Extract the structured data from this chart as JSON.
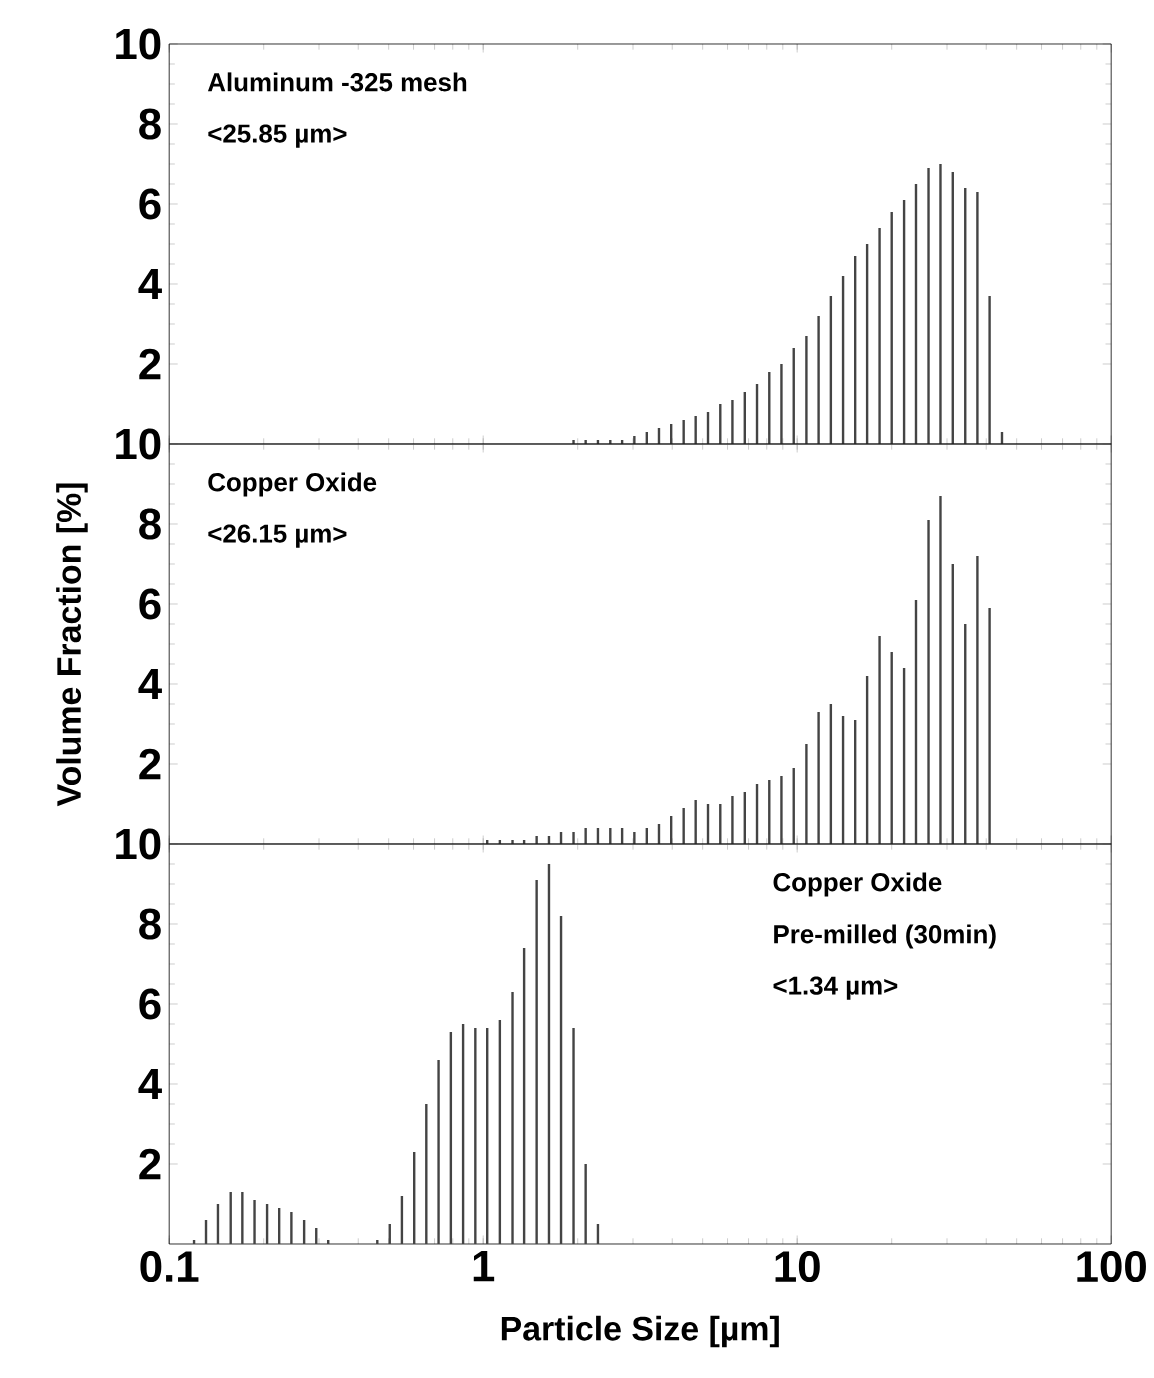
{
  "chart_data": [
    {
      "type": "bar",
      "log": "x",
      "tick_labels": "y",
      "color": "#444444",
      "xlim": [
        0.1,
        100
      ],
      "ylim": [
        0,
        10
      ],
      "xticks": [
        0.1,
        1,
        10,
        100
      ],
      "yticks": [
        2,
        4,
        6,
        8,
        10
      ],
      "annotations": [
        "Aluminum -325 mesh",
        "<25.85 µm>"
      ],
      "x": [
        1.94,
        2.12,
        2.32,
        2.54,
        2.77,
        3.03,
        3.32,
        3.63,
        3.97,
        4.35,
        4.75,
        5.2,
        5.69,
        6.22,
        6.81,
        7.45,
        8.15,
        8.91,
        9.75,
        10.7,
        11.7,
        12.8,
        14.0,
        15.3,
        16.7,
        18.3,
        20.0,
        21.9,
        23.9,
        26.2,
        28.6,
        31.3,
        34.3,
        37.5,
        41.0,
        44.9
      ],
      "values": [
        0.1,
        0.1,
        0.1,
        0.1,
        0.1,
        0.2,
        0.3,
        0.4,
        0.5,
        0.6,
        0.7,
        0.8,
        1.0,
        1.1,
        1.3,
        1.5,
        1.8,
        2.0,
        2.4,
        2.7,
        3.2,
        3.7,
        4.2,
        4.7,
        5.0,
        5.4,
        5.8,
        6.1,
        6.5,
        6.9,
        7.0,
        6.8,
        6.4,
        6.3,
        3.7,
        0.3
      ]
    },
    {
      "type": "bar",
      "log": "x",
      "tick_labels": "y",
      "color": "#444444",
      "xlim": [
        0.1,
        100
      ],
      "ylim": [
        0,
        10
      ],
      "xticks": [
        0.1,
        1,
        10,
        100
      ],
      "yticks": [
        2,
        4,
        6,
        8,
        10
      ],
      "ylabel": "Volume Fraction [%]",
      "annotations": [
        "Copper Oxide",
        "<26.15 µm>"
      ],
      "x": [
        1.03,
        1.13,
        1.24,
        1.35,
        1.48,
        1.62,
        1.77,
        1.94,
        2.12,
        2.32,
        2.54,
        2.77,
        3.03,
        3.32,
        3.63,
        3.97,
        4.35,
        4.75,
        5.2,
        5.69,
        6.22,
        6.81,
        7.45,
        8.15,
        8.91,
        9.75,
        10.7,
        11.7,
        12.8,
        14.0,
        15.3,
        16.7,
        18.3,
        20.0,
        21.9,
        23.9,
        26.2,
        28.6,
        31.3,
        34.3,
        37.5,
        41.0
      ],
      "values": [
        0.1,
        0.1,
        0.1,
        0.1,
        0.2,
        0.2,
        0.3,
        0.3,
        0.4,
        0.4,
        0.4,
        0.4,
        0.3,
        0.4,
        0.5,
        0.7,
        0.9,
        1.1,
        1.0,
        1.0,
        1.2,
        1.3,
        1.5,
        1.6,
        1.7,
        1.9,
        2.5,
        3.3,
        3.5,
        3.2,
        3.1,
        4.2,
        5.2,
        4.8,
        4.4,
        6.1,
        8.1,
        8.7,
        7.0,
        5.5,
        7.2,
        5.9
      ]
    },
    {
      "type": "bar",
      "log": "x",
      "color": "#444444",
      "xlim": [
        0.1,
        100
      ],
      "ylim": [
        0,
        10
      ],
      "xticks": [
        0.1,
        1,
        10,
        100
      ],
      "yticks": [
        2,
        4,
        6,
        8,
        10
      ],
      "xlabel": "Particle Size [µm]",
      "annotations": [
        "Copper Oxide",
        "Pre-milled (30min)",
        "<1.34 µm>"
      ],
      "x": [
        0.12,
        0.131,
        0.143,
        0.157,
        0.171,
        0.187,
        0.205,
        0.224,
        0.245,
        0.269,
        0.294,
        0.321,
        0.46,
        0.504,
        0.551,
        0.603,
        0.659,
        0.721,
        0.789,
        0.863,
        0.944,
        1.03,
        1.13,
        1.24,
        1.35,
        1.48,
        1.62,
        1.77,
        1.94,
        2.12,
        2.32
      ],
      "values": [
        0.1,
        0.6,
        1.0,
        1.3,
        1.3,
        1.1,
        1.0,
        0.9,
        0.8,
        0.6,
        0.4,
        0.1,
        0.1,
        0.5,
        1.2,
        2.3,
        3.5,
        4.6,
        5.3,
        5.5,
        5.4,
        5.4,
        5.6,
        6.3,
        7.4,
        9.1,
        9.5,
        8.2,
        5.4,
        2.0,
        0.5
      ]
    }
  ]
}
